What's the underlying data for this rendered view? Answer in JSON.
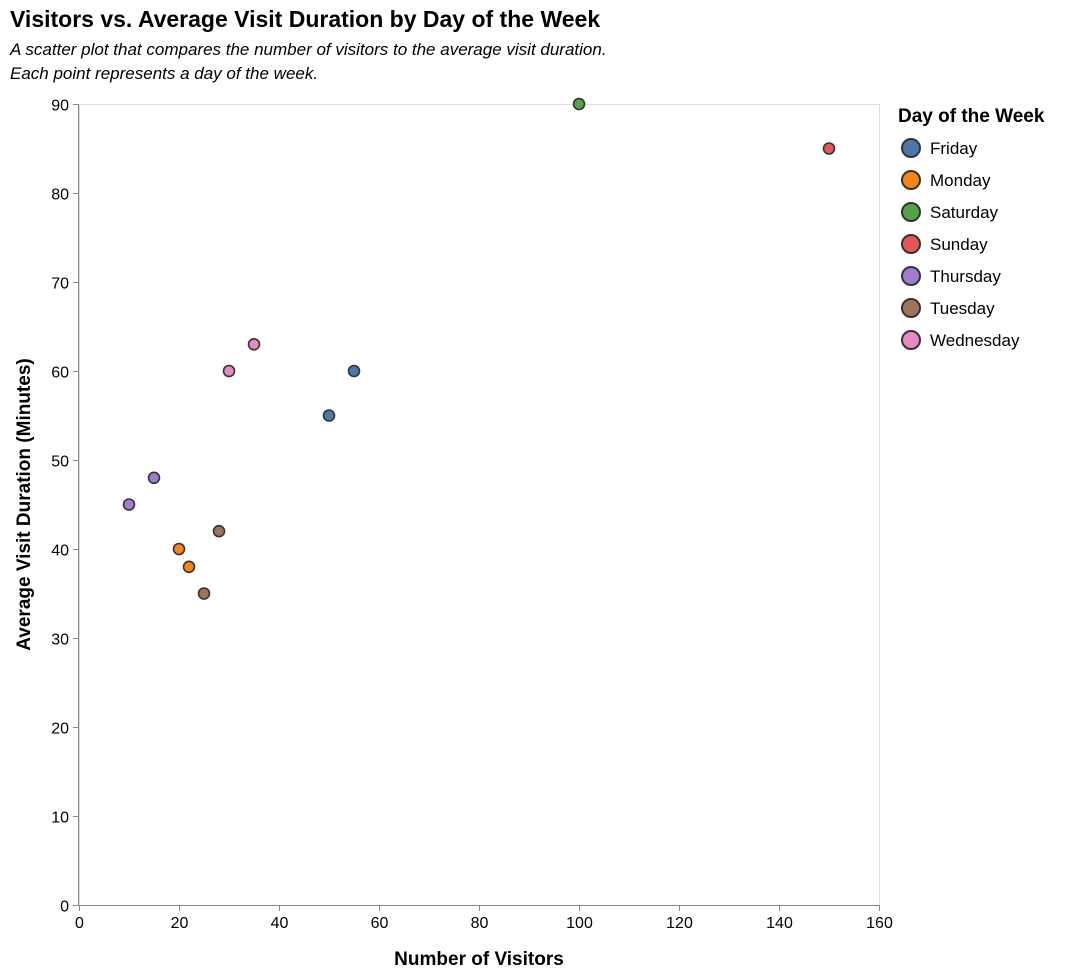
{
  "chart_data": {
    "type": "scatter",
    "title": "Visitors vs. Average Visit Duration by Day of the Week",
    "subtitle": [
      "A scatter plot that compares the number of visitors to the average visit duration.",
      "Each point represents a day of the week."
    ],
    "xlabel": "Number of Visitors",
    "ylabel": "Average Visit Duration (Minutes)",
    "xlim": [
      0,
      160
    ],
    "ylim": [
      0,
      90
    ],
    "x_ticks": [
      0,
      20,
      40,
      60,
      80,
      100,
      120,
      140,
      160
    ],
    "y_ticks": [
      0,
      10,
      20,
      30,
      40,
      50,
      60,
      70,
      80,
      90
    ],
    "grid": false,
    "legend": {
      "title": "Day of the Week",
      "placement": "right"
    },
    "series": [
      {
        "name": "Friday",
        "color": "#4c78a8",
        "points": [
          {
            "x": 50,
            "y": 55
          },
          {
            "x": 55,
            "y": 60
          }
        ]
      },
      {
        "name": "Monday",
        "color": "#f58518",
        "points": [
          {
            "x": 20,
            "y": 40
          },
          {
            "x": 22,
            "y": 38
          }
        ]
      },
      {
        "name": "Saturday",
        "color": "#54a24b",
        "points": [
          {
            "x": 100,
            "y": 90
          }
        ]
      },
      {
        "name": "Sunday",
        "color": "#e45756",
        "points": [
          {
            "x": 150,
            "y": 85
          }
        ]
      },
      {
        "name": "Thursday",
        "color": "#a07bd1",
        "points": [
          {
            "x": 10,
            "y": 45
          },
          {
            "x": 15,
            "y": 48
          }
        ]
      },
      {
        "name": "Tuesday",
        "color": "#9d755d",
        "points": [
          {
            "x": 25,
            "y": 35
          },
          {
            "x": 28,
            "y": 42
          }
        ]
      },
      {
        "name": "Wednesday",
        "color": "#e78ac3",
        "points": [
          {
            "x": 30,
            "y": 60
          },
          {
            "x": 35,
            "y": 63
          }
        ]
      }
    ]
  }
}
